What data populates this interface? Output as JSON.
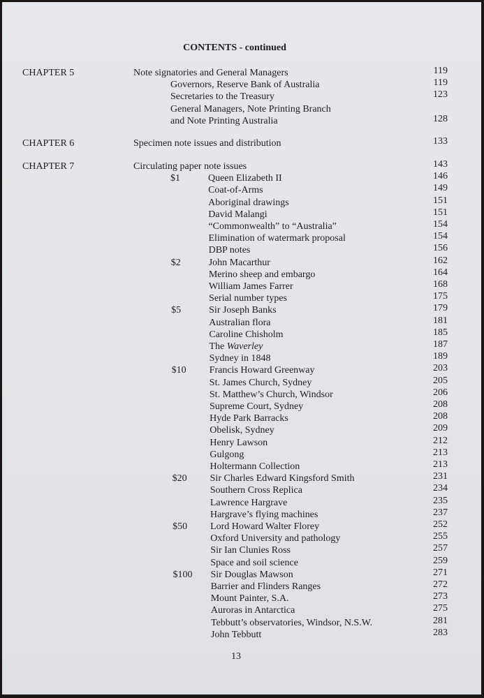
{
  "title": "CONTENTS - continued",
  "chapters": [
    {
      "label": "CHAPTER 5",
      "entries": [
        {
          "text": "Note signatories and General Managers",
          "page": "119",
          "level": 0
        },
        {
          "text": "Governors, Reserve Bank of Australia",
          "page": "119",
          "level": 1
        },
        {
          "text": "Secretaries to the Treasury",
          "page": "123",
          "level": 1
        },
        {
          "text": "General Managers, Note Printing Branch",
          "page": "",
          "level": 1
        },
        {
          "text": "and Note Printing Australia",
          "page": "128",
          "level": 1
        }
      ]
    },
    {
      "label": "CHAPTER 6",
      "entries": [
        {
          "text": "Specimen note issues and distribution",
          "page": "133",
          "level": 0
        }
      ]
    },
    {
      "label": "CHAPTER 7",
      "entries": [
        {
          "text": "Circulating paper note issues",
          "page": "143",
          "level": 0
        }
      ],
      "denominations": [
        {
          "label": "$1",
          "items": [
            {
              "text": "Queen Elizabeth II",
              "page": "146"
            },
            {
              "text": "Coat-of-Arms",
              "page": "149"
            },
            {
              "text": "Aboriginal drawings",
              "page": "151"
            },
            {
              "text": "David Malangi",
              "page": "151"
            },
            {
              "text": "“Commonwealth” to “Australia”",
              "page": "154"
            },
            {
              "text": "Elimination of watermark proposal",
              "page": "154"
            },
            {
              "text": "DBP notes",
              "page": "156"
            }
          ]
        },
        {
          "label": "$2",
          "items": [
            {
              "text": "John Macarthur",
              "page": "162"
            },
            {
              "text": "Merino sheep and embargo",
              "page": "164"
            },
            {
              "text": "William James Farrer",
              "page": "168"
            },
            {
              "text": "Serial number types",
              "page": "175"
            }
          ]
        },
        {
          "label": "$5",
          "items": [
            {
              "text": "Sir Joseph Banks",
              "page": "179"
            },
            {
              "text": "Australian flora",
              "page": "181"
            },
            {
              "text": "Caroline Chisholm",
              "page": "185"
            },
            {
              "text": "The ",
              "italic": "Waverley",
              "page": "187"
            },
            {
              "text": "Sydney in 1848",
              "page": "189"
            }
          ]
        },
        {
          "label": "$10",
          "items": [
            {
              "text": "Francis Howard Greenway",
              "page": "203"
            },
            {
              "text": "St. James Church, Sydney",
              "page": "205"
            },
            {
              "text": "St. Matthew’s Church, Windsor",
              "page": "206"
            },
            {
              "text": "Supreme Court, Sydney",
              "page": "208"
            },
            {
              "text": "Hyde Park Barracks",
              "page": "208"
            },
            {
              "text": "Obelisk, Sydney",
              "page": "209"
            },
            {
              "text": "Henry Lawson",
              "page": "212"
            },
            {
              "text": "Gulgong",
              "page": "213"
            },
            {
              "text": "Holtermann Collection",
              "page": "213"
            }
          ]
        },
        {
          "label": "$20",
          "items": [
            {
              "text": "Sir Charles Edward Kingsford Smith",
              "page": "231"
            },
            {
              "text": "Southern Cross Replica",
              "page": "234"
            },
            {
              "text": "Lawrence Hargrave",
              "page": "235"
            },
            {
              "text": "Hargrave’s flying machines",
              "page": "237"
            }
          ]
        },
        {
          "label": "$50",
          "items": [
            {
              "text": "Lord Howard Walter Florey",
              "page": "252"
            },
            {
              "text": "Oxford University and pathology",
              "page": "255"
            },
            {
              "text": "Sir Ian Clunies Ross",
              "page": "257"
            },
            {
              "text": "Space and soil science",
              "page": "259"
            }
          ]
        },
        {
          "label": "$100",
          "items": [
            {
              "text": "Sir Douglas Mawson",
              "page": "271"
            },
            {
              "text": "Barrier and Flinders Ranges",
              "page": "272"
            },
            {
              "text": "Mount Painter, S.A.",
              "page": "273"
            },
            {
              "text": "Auroras in Antarctica",
              "page": "275"
            },
            {
              "text": "Tebbutt’s observatories, Windsor, N.S.W.",
              "page": "281"
            },
            {
              "text": "John Tebbutt",
              "page": "283"
            }
          ]
        }
      ]
    }
  ],
  "footer": {
    "page_number": "13"
  }
}
